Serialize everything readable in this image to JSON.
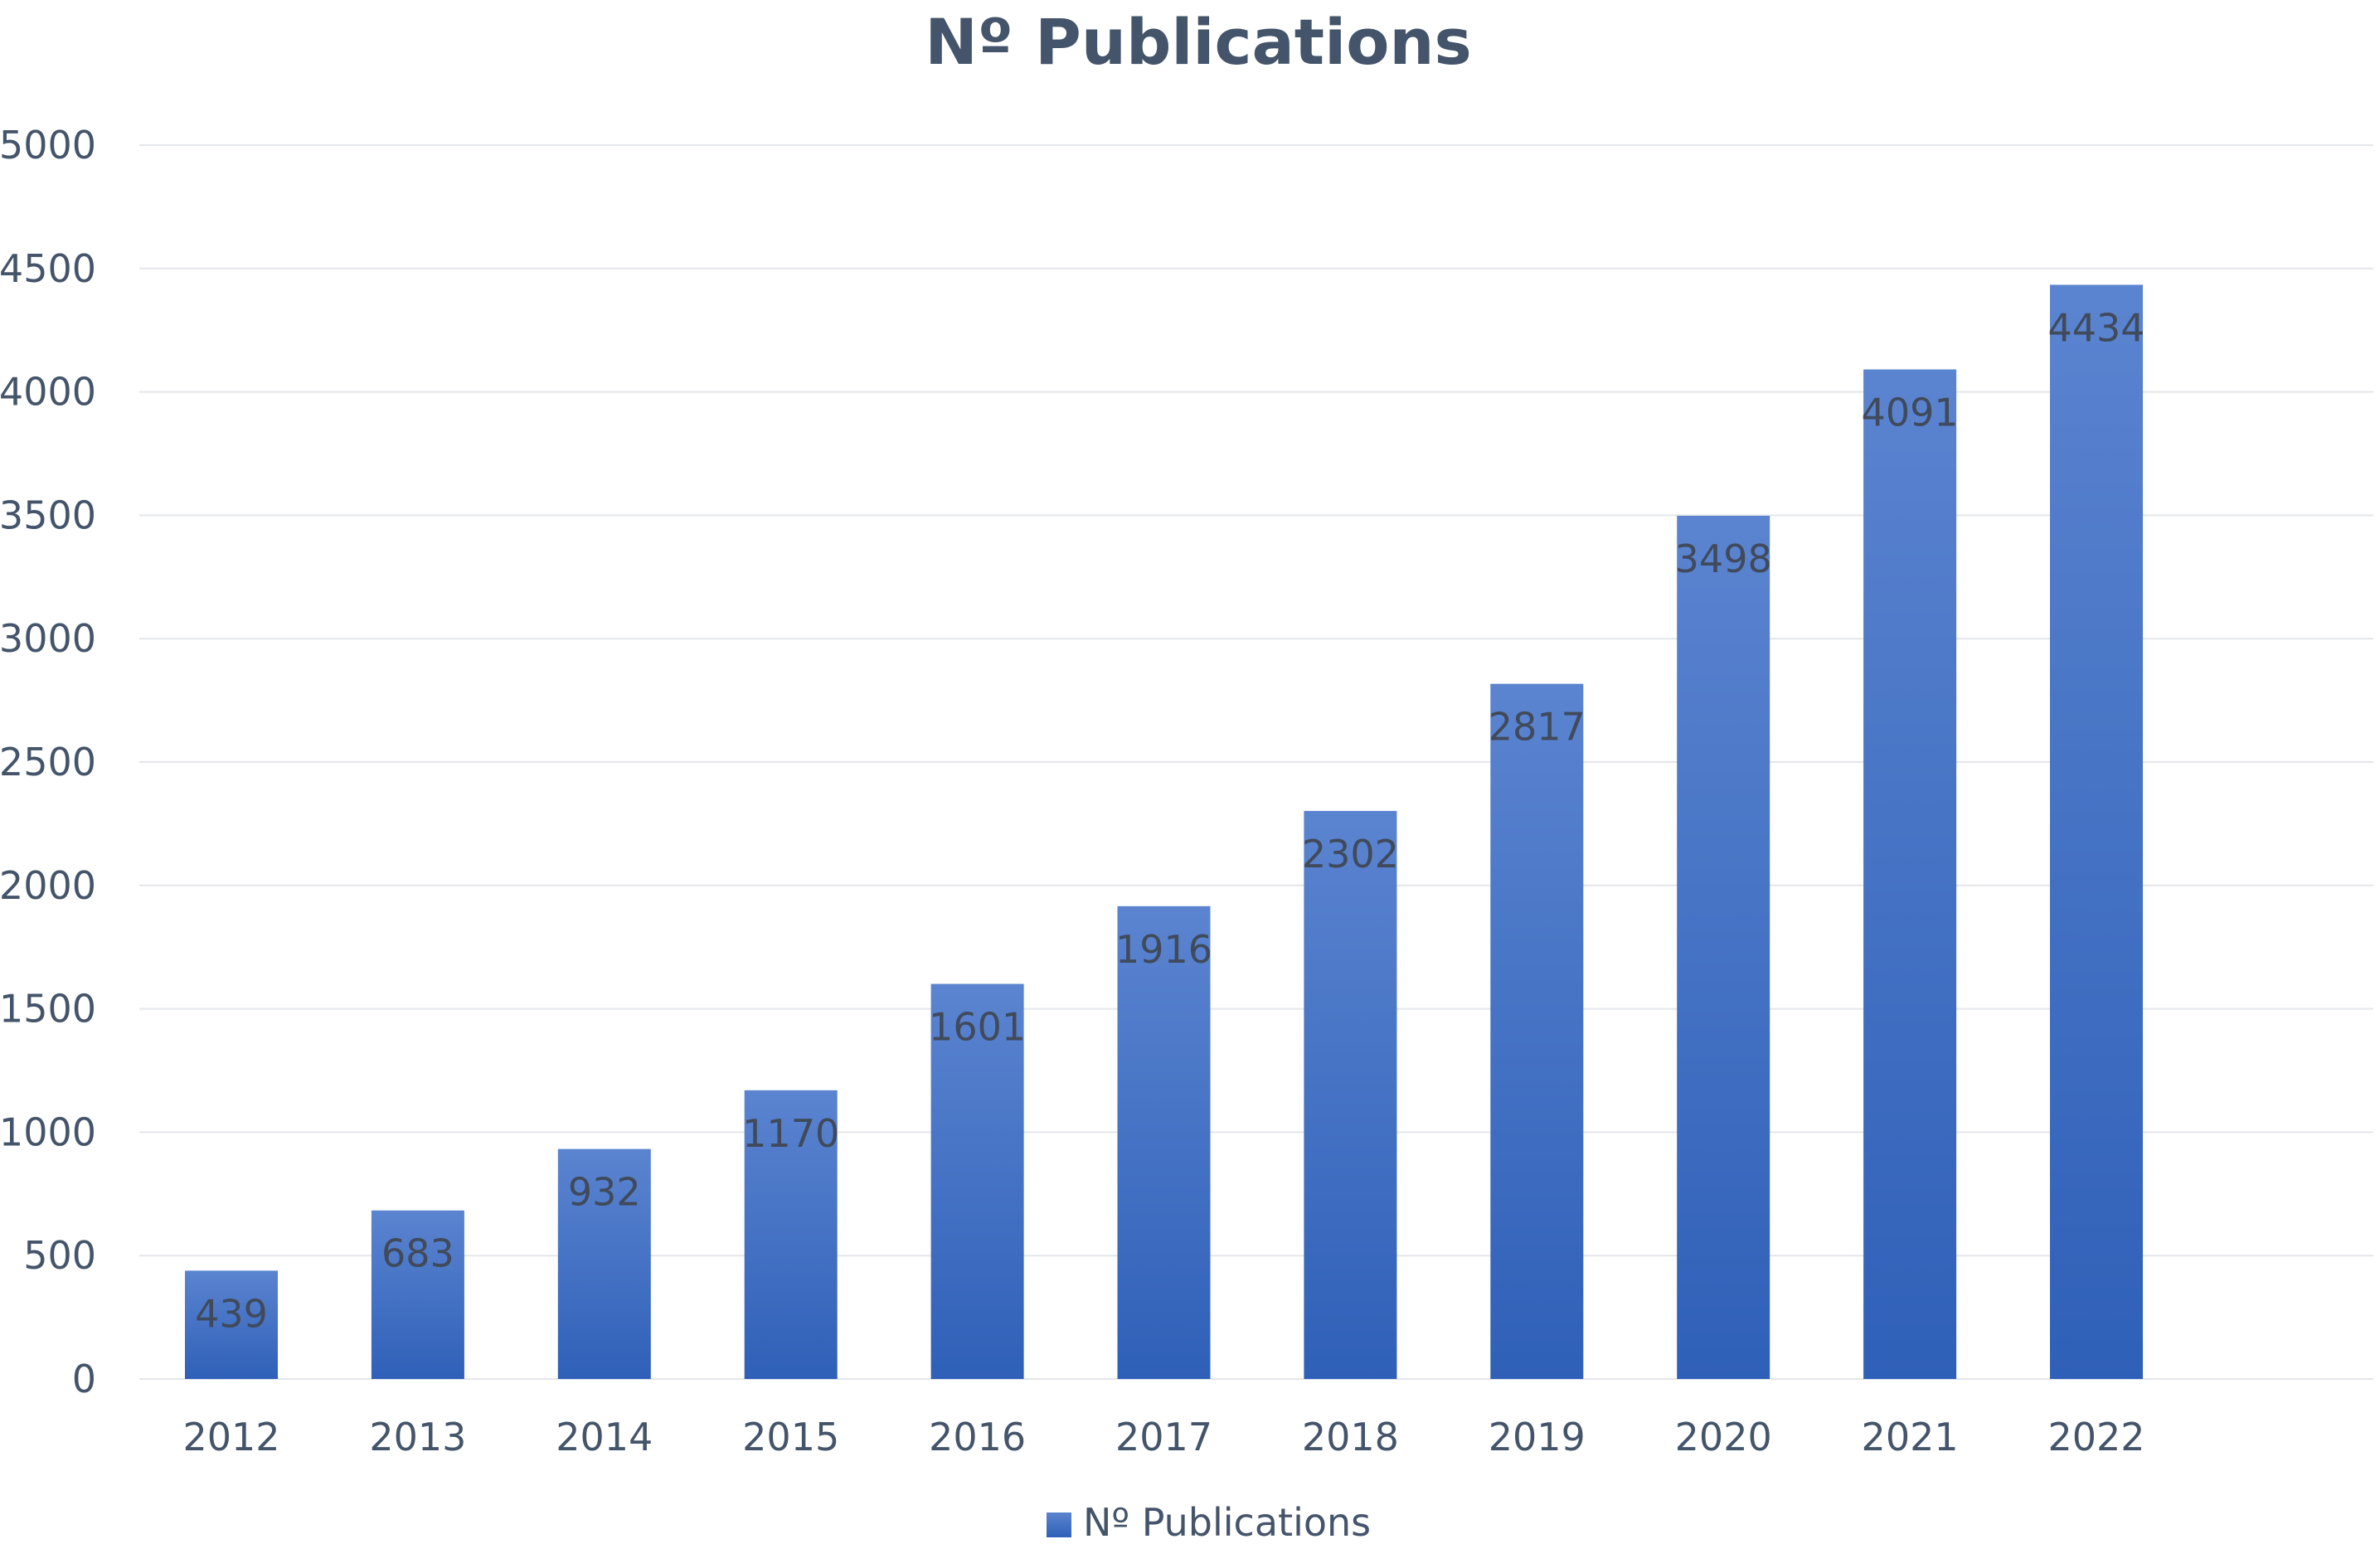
{
  "chart_data": {
    "type": "bar",
    "title": "Nº Publications",
    "categories": [
      "2012",
      "2013",
      "2014",
      "2015",
      "2016",
      "2017",
      "2018",
      "2019",
      "2020",
      "2021",
      "2022"
    ],
    "series": [
      {
        "name": "Nº Publications",
        "values": [
          439,
          683,
          932,
          1170,
          1601,
          1916,
          2302,
          2817,
          3498,
          4091,
          4434
        ]
      }
    ],
    "ylim": [
      0,
      5000
    ],
    "yticks": [
      0,
      500,
      1000,
      1500,
      2000,
      2500,
      3000,
      3500,
      4000,
      4500,
      5000
    ],
    "xlabel": "",
    "ylabel": "",
    "grid": true,
    "legend": "bottom",
    "data_labels": "inside-end",
    "colors": {
      "bar_top": "#5b84d0",
      "bar_bottom": "#2f60b8",
      "text": "#44546a",
      "grid": "#e4e6ea"
    }
  }
}
